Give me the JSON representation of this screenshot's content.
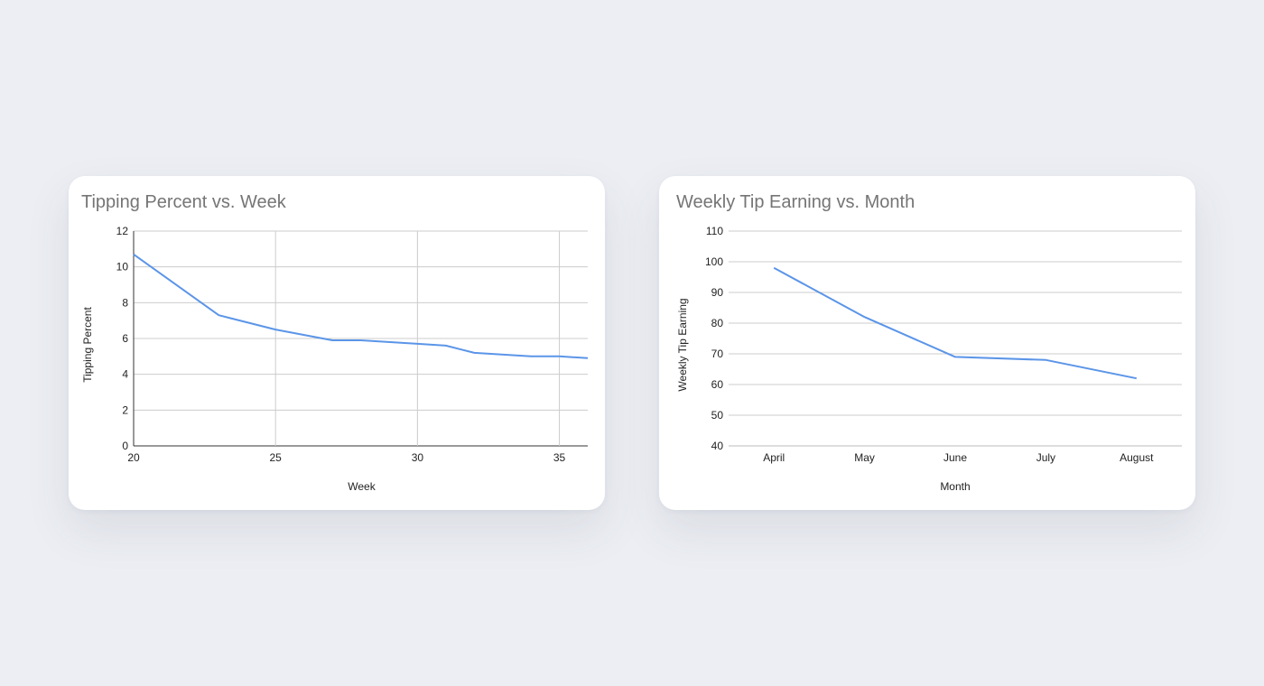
{
  "chart_data": [
    {
      "type": "line",
      "title": "Tipping Percent vs. Week",
      "xlabel": "Week",
      "ylabel": "Tipping Percent",
      "xlim": [
        20,
        36
      ],
      "ylim": [
        0,
        12
      ],
      "x_ticks": [
        20,
        25,
        30,
        35
      ],
      "y_ticks": [
        0,
        2,
        4,
        6,
        8,
        10,
        12
      ],
      "grid": "both",
      "legend": "none",
      "line_color": "#5b95e8",
      "series": [
        {
          "x": [
            20,
            23,
            25,
            27,
            28,
            30,
            31,
            32,
            34,
            35,
            36
          ],
          "values": [
            10.7,
            7.3,
            6.5,
            5.9,
            5.9,
            5.7,
            5.6,
            5.2,
            5.0,
            5.0,
            4.9
          ]
        }
      ]
    },
    {
      "type": "line",
      "title": "Weekly Tip Earning vs. Month",
      "xlabel": "Month",
      "ylabel": "Weekly Tip Earning",
      "categories": [
        "April",
        "May",
        "June",
        "July",
        "August"
      ],
      "ylim": [
        40,
        110
      ],
      "y_ticks": [
        40,
        50,
        60,
        70,
        80,
        90,
        100,
        110
      ],
      "grid": "horizontal",
      "legend": "none",
      "line_color": "#5b95e8",
      "series": [
        {
          "values": [
            98,
            82,
            69,
            68,
            62
          ]
        }
      ]
    }
  ]
}
